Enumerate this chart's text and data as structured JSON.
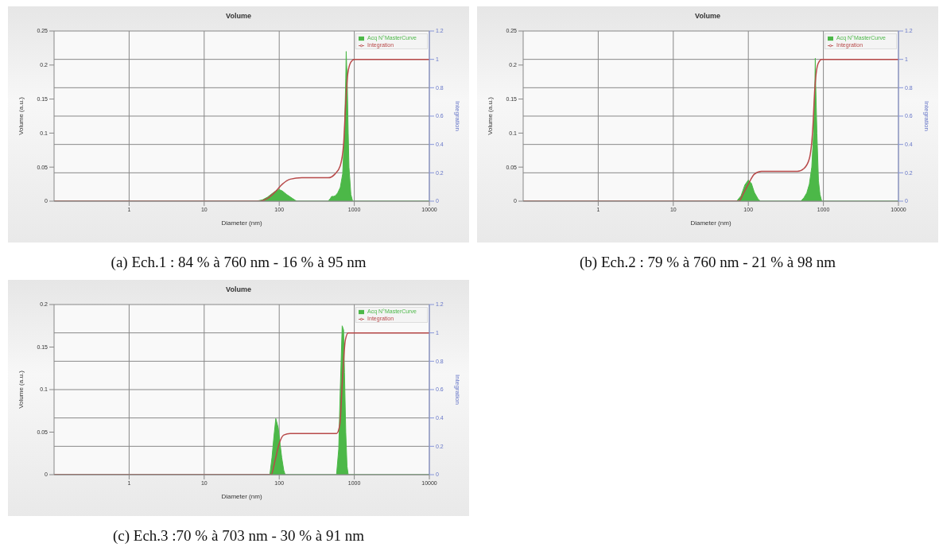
{
  "chart_data": [
    {
      "type": "area",
      "title": "Volume",
      "xlabel": "Diameter (nm)",
      "ylabel": "Volume (a.u.)",
      "y2label": "Integration",
      "log": "x",
      "xlim": [
        0.1,
        10000
      ],
      "xticks": [
        1,
        10,
        100,
        1000,
        10000
      ],
      "ylim": [
        0,
        0.25
      ],
      "yticks": [
        0,
        0.05,
        0.1,
        0.15,
        0.2,
        0.25
      ],
      "y2lim": [
        0,
        1.2
      ],
      "y2ticks": [
        0,
        0.2,
        0.4,
        0.6,
        0.8,
        1,
        1.2
      ],
      "grid": true,
      "legend": "top right",
      "annotations": [
        "(a) Ech.1 : 84 % à 760 nm - 16 % à 95 nm"
      ],
      "series": [
        {
          "name": "Acq N°MasterCurve",
          "color": "#4cb848",
          "x": [
            0.1,
            50,
            60,
            70,
            80,
            90,
            100,
            110,
            125,
            150,
            170,
            450,
            480,
            500,
            530,
            560,
            600,
            650,
            700,
            740,
            770,
            780,
            790,
            800,
            830,
            850,
            900,
            950,
            10000
          ],
          "values": [
            0,
            0,
            0.002,
            0.006,
            0.011,
            0.015,
            0.017,
            0.015,
            0.01,
            0.004,
            0,
            0,
            0.004,
            0.007,
            0.007,
            0.008,
            0.012,
            0.02,
            0.04,
            0.1,
            0.18,
            0.22,
            0.2,
            0.19,
            0.1,
            0.05,
            0.01,
            0,
            0
          ]
        },
        {
          "name": "Integration",
          "type": "line",
          "axis": "y2",
          "color": "#b84a4a",
          "x": [
            0.1,
            55,
            70,
            90,
            110,
            140,
            200,
            450,
            550,
            650,
            720,
            770,
            820,
            900,
            1000,
            10000
          ],
          "values": [
            0,
            0,
            0.02,
            0.07,
            0.12,
            0.155,
            0.165,
            0.165,
            0.19,
            0.25,
            0.4,
            0.7,
            0.9,
            0.98,
            1,
            1
          ]
        }
      ]
    },
    {
      "type": "area",
      "title": "Volume",
      "xlabel": "Diameter (nm)",
      "ylabel": "Volume (a.u.)",
      "y2label": "Integration",
      "log": "x",
      "xlim": [
        0.1,
        10000
      ],
      "xticks": [
        1,
        10,
        100,
        1000,
        10000
      ],
      "ylim": [
        0,
        0.25
      ],
      "yticks": [
        0,
        0.05,
        0.1,
        0.15,
        0.2,
        0.25
      ],
      "y2lim": [
        0,
        1.2
      ],
      "y2ticks": [
        0,
        0.2,
        0.4,
        0.6,
        0.8,
        1,
        1.2
      ],
      "grid": true,
      "legend": "top right",
      "annotations": [
        "(b) Ech.2 : 79 % à 760 nm - 21 % à 98 nm"
      ],
      "series": [
        {
          "name": "Acq N°MasterCurve",
          "color": "#4cb848",
          "x": [
            0.1,
            70,
            80,
            90,
            100,
            110,
            120,
            135,
            145,
            500,
            550,
            600,
            650,
            700,
            740,
            770,
            780,
            790,
            820,
            860,
            900,
            950,
            10000
          ],
          "values": [
            0,
            0,
            0.008,
            0.024,
            0.031,
            0.026,
            0.013,
            0.003,
            0,
            0,
            0.005,
            0.012,
            0.025,
            0.05,
            0.1,
            0.17,
            0.21,
            0.17,
            0.1,
            0.03,
            0.01,
            0,
            0
          ]
        },
        {
          "name": "Integration",
          "type": "line",
          "axis": "y2",
          "color": "#b84a4a",
          "x": [
            0.1,
            75,
            85,
            100,
            120,
            150,
            450,
            550,
            650,
            720,
            770,
            850,
            950,
            10000
          ],
          "values": [
            0,
            0,
            0.05,
            0.12,
            0.19,
            0.21,
            0.21,
            0.23,
            0.3,
            0.5,
            0.8,
            0.97,
            1,
            1
          ]
        }
      ]
    },
    {
      "type": "area",
      "title": "Volume",
      "xlabel": "Diameter (nm)",
      "ylabel": "Volume (a.u.)",
      "y2label": "Integration",
      "log": "x",
      "xlim": [
        0.1,
        10000
      ],
      "xticks": [
        1,
        10,
        100,
        1000,
        10000
      ],
      "ylim": [
        0,
        0.2
      ],
      "yticks": [
        0,
        0.05,
        0.1,
        0.15,
        0.2
      ],
      "y2lim": [
        0,
        1.2
      ],
      "y2ticks": [
        0,
        0.2,
        0.4,
        0.6,
        0.8,
        1,
        1.2
      ],
      "grid": true,
      "legend": "top right",
      "annotations": [
        "(c) Ech.3 :70 % à 703 nm - 30 % à 91 nm"
      ],
      "series": [
        {
          "name": "Acq N°MasterCurve",
          "color": "#4cb848",
          "x": [
            0.1,
            75,
            80,
            85,
            90,
            97,
            103,
            108,
            115,
            120,
            580,
            620,
            650,
            690,
            720,
            740,
            770,
            800,
            830,
            10000
          ],
          "values": [
            0,
            0,
            0.02,
            0.045,
            0.066,
            0.055,
            0.035,
            0.02,
            0.005,
            0,
            0,
            0.03,
            0.1,
            0.175,
            0.17,
            0.12,
            0.05,
            0.01,
            0,
            0
          ]
        },
        {
          "name": "Integration",
          "type": "line",
          "axis": "y2",
          "color": "#b84a4a",
          "x": [
            0.1,
            78,
            88,
            100,
            115,
            140,
            580,
            640,
            700,
            760,
            830,
            10000
          ],
          "values": [
            0,
            0,
            0.1,
            0.22,
            0.28,
            0.29,
            0.29,
            0.35,
            0.7,
            0.95,
            1,
            1
          ]
        }
      ]
    }
  ]
}
